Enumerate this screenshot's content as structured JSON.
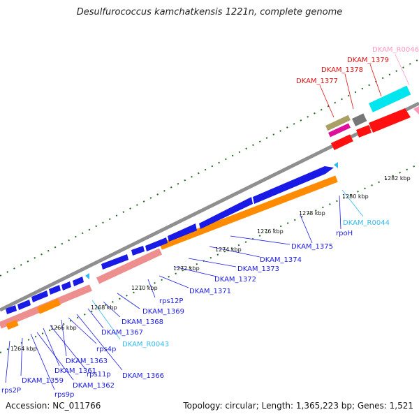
{
  "title": "Desulfurococcus kamchatkensis 1221n, complete genome",
  "accession": "Accession: NC_011766",
  "summary": "Topology: circular; Length: 1,365,223 bp; Genes: 1,521",
  "colors": {
    "cds_forward": "#1a1ae6",
    "cds_reverse": "#ff8c00",
    "cds_reverse_light": "#ee8f8f",
    "rna": "#33bbee",
    "crispr_pink": "#ff99bb",
    "red_feature": "#ff1010",
    "label_red": "#dd1111",
    "backbone": "#909090",
    "dots": "#226622"
  },
  "ticks": [
    "1264 kbp",
    "1266 kbp",
    "1268 kbp",
    "1270 kbp",
    "1272 kbp",
    "1274 kbp",
    "1276 kbp",
    "1278 kbp",
    "1280 kbp",
    "1282 kbp"
  ],
  "labels_bottom": [
    "rps2P",
    "DKAM_1359",
    "rps9p",
    "DKAM_1362",
    "DKAM_1361",
    "rps11p",
    "DKAM_1363",
    "rps4p",
    "DKAM_1366",
    "DKAM_R0043",
    "DKAM_1367",
    "DKAM_1368",
    "DKAM_1369",
    "rps12P",
    "DKAM_1371",
    "DKAM_1372",
    "DKAM_1373",
    "DKAM_1374",
    "DKAM_1375",
    "rpoH",
    "DKAM_R0044"
  ],
  "labels_top": [
    "DKAM_1377",
    "DKAM_1378",
    "DKAM_1379",
    "DKAM_R0046"
  ]
}
